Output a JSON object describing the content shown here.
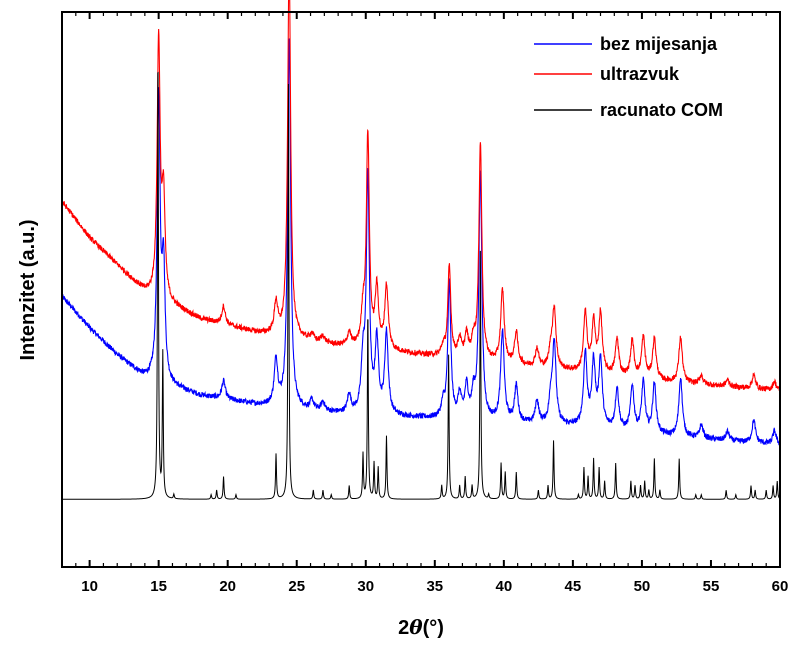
{
  "chart_data": {
    "type": "line",
    "title": "",
    "xlabel": {
      "prefix": "2",
      "symbol": "θ",
      "suffix": "(°)"
    },
    "ylabel": "Intenzitet (a.u.)",
    "xlim": [
      8,
      60
    ],
    "x_ticks": [
      10,
      15,
      20,
      25,
      30,
      35,
      40,
      45,
      50,
      55,
      60
    ],
    "x_tick_labels": [
      "10",
      "15",
      "20",
      "25",
      "30",
      "35",
      "40",
      "45",
      "50",
      "55",
      "60"
    ],
    "ylim": [
      -0.15,
      1.08
    ],
    "y_ticks_shown": false,
    "grid": false,
    "legend_position": "top-right",
    "series": [
      {
        "name": "bez mijesanja",
        "color": "#0000ff",
        "noise": 0.006,
        "baseline": {
          "x": [
            8,
            10,
            12,
            14,
            18,
            22,
            28,
            34,
            40,
            46,
            52,
            56,
            60
          ],
          "y": [
            0.45,
            0.38,
            0.32,
            0.27,
            0.23,
            0.21,
            0.19,
            0.18,
            0.17,
            0.16,
            0.14,
            0.13,
            0.12
          ]
        },
        "peaks": [
          {
            "x": 15.0,
            "h": 0.62,
            "w": 0.13
          },
          {
            "x": 15.35,
            "h": 0.25,
            "w": 0.13
          },
          {
            "x": 19.7,
            "h": 0.04,
            "w": 0.15
          },
          {
            "x": 23.5,
            "h": 0.1,
            "w": 0.15
          },
          {
            "x": 24.45,
            "h": 0.82,
            "w": 0.13
          },
          {
            "x": 26.1,
            "h": 0.02,
            "w": 0.15
          },
          {
            "x": 26.9,
            "h": 0.02,
            "w": 0.15
          },
          {
            "x": 28.8,
            "h": 0.04,
            "w": 0.15
          },
          {
            "x": 29.8,
            "h": 0.11,
            "w": 0.15
          },
          {
            "x": 30.15,
            "h": 0.52,
            "w": 0.13
          },
          {
            "x": 30.8,
            "h": 0.16,
            "w": 0.15
          },
          {
            "x": 31.5,
            "h": 0.18,
            "w": 0.15
          },
          {
            "x": 35.6,
            "h": 0.03,
            "w": 0.15
          },
          {
            "x": 36.05,
            "h": 0.3,
            "w": 0.13
          },
          {
            "x": 36.8,
            "h": 0.05,
            "w": 0.15
          },
          {
            "x": 37.3,
            "h": 0.07,
            "w": 0.15
          },
          {
            "x": 37.8,
            "h": 0.05,
            "w": 0.15
          },
          {
            "x": 38.3,
            "h": 0.55,
            "w": 0.13
          },
          {
            "x": 39.9,
            "h": 0.2,
            "w": 0.15
          },
          {
            "x": 40.9,
            "h": 0.08,
            "w": 0.15
          },
          {
            "x": 42.4,
            "h": 0.05,
            "w": 0.15
          },
          {
            "x": 43.4,
            "h": 0.05,
            "w": 0.15
          },
          {
            "x": 43.65,
            "h": 0.18,
            "w": 0.15
          },
          {
            "x": 45.9,
            "h": 0.16,
            "w": 0.15
          },
          {
            "x": 46.5,
            "h": 0.14,
            "w": 0.15
          },
          {
            "x": 47.0,
            "h": 0.15,
            "w": 0.15
          },
          {
            "x": 48.2,
            "h": 0.09,
            "w": 0.15
          },
          {
            "x": 49.3,
            "h": 0.1,
            "w": 0.15
          },
          {
            "x": 50.1,
            "h": 0.11,
            "w": 0.15
          },
          {
            "x": 50.9,
            "h": 0.11,
            "w": 0.15
          },
          {
            "x": 52.8,
            "h": 0.13,
            "w": 0.15
          },
          {
            "x": 54.3,
            "h": 0.03,
            "w": 0.15
          },
          {
            "x": 56.2,
            "h": 0.02,
            "w": 0.15
          },
          {
            "x": 58.1,
            "h": 0.05,
            "w": 0.15
          },
          {
            "x": 59.6,
            "h": 0.03,
            "w": 0.15
          }
        ]
      },
      {
        "name": "ultrazvuk",
        "color": "#ff0000",
        "noise": 0.006,
        "baseline": {
          "x": [
            8,
            10,
            12,
            14,
            18,
            22,
            28,
            34,
            40,
            46,
            52,
            56,
            60
          ],
          "y": [
            0.66,
            0.58,
            0.52,
            0.46,
            0.4,
            0.37,
            0.34,
            0.32,
            0.3,
            0.28,
            0.26,
            0.25,
            0.24
          ]
        },
        "peaks": [
          {
            "x": 15.0,
            "h": 0.57,
            "w": 0.13
          },
          {
            "x": 15.35,
            "h": 0.22,
            "w": 0.13
          },
          {
            "x": 19.7,
            "h": 0.04,
            "w": 0.15
          },
          {
            "x": 23.5,
            "h": 0.07,
            "w": 0.15
          },
          {
            "x": 24.45,
            "h": 0.83,
            "w": 0.13
          },
          {
            "x": 26.1,
            "h": 0.015,
            "w": 0.15
          },
          {
            "x": 26.9,
            "h": 0.015,
            "w": 0.15
          },
          {
            "x": 28.8,
            "h": 0.03,
            "w": 0.15
          },
          {
            "x": 29.8,
            "h": 0.07,
            "w": 0.15
          },
          {
            "x": 30.15,
            "h": 0.47,
            "w": 0.13
          },
          {
            "x": 30.8,
            "h": 0.13,
            "w": 0.15
          },
          {
            "x": 31.5,
            "h": 0.14,
            "w": 0.15
          },
          {
            "x": 35.6,
            "h": 0.02,
            "w": 0.15
          },
          {
            "x": 36.05,
            "h": 0.2,
            "w": 0.13
          },
          {
            "x": 36.8,
            "h": 0.04,
            "w": 0.15
          },
          {
            "x": 37.3,
            "h": 0.05,
            "w": 0.15
          },
          {
            "x": 37.8,
            "h": 0.04,
            "w": 0.15
          },
          {
            "x": 38.3,
            "h": 0.48,
            "w": 0.13
          },
          {
            "x": 39.9,
            "h": 0.16,
            "w": 0.15
          },
          {
            "x": 40.9,
            "h": 0.07,
            "w": 0.15
          },
          {
            "x": 42.4,
            "h": 0.04,
            "w": 0.15
          },
          {
            "x": 43.4,
            "h": 0.04,
            "w": 0.15
          },
          {
            "x": 43.65,
            "h": 0.13,
            "w": 0.15
          },
          {
            "x": 45.9,
            "h": 0.13,
            "w": 0.15
          },
          {
            "x": 46.5,
            "h": 0.11,
            "w": 0.15
          },
          {
            "x": 47.0,
            "h": 0.13,
            "w": 0.15
          },
          {
            "x": 48.2,
            "h": 0.08,
            "w": 0.15
          },
          {
            "x": 49.3,
            "h": 0.08,
            "w": 0.15
          },
          {
            "x": 50.1,
            "h": 0.09,
            "w": 0.15
          },
          {
            "x": 50.9,
            "h": 0.09,
            "w": 0.15
          },
          {
            "x": 52.8,
            "h": 0.1,
            "w": 0.15
          },
          {
            "x": 54.3,
            "h": 0.02,
            "w": 0.15
          },
          {
            "x": 56.2,
            "h": 0.015,
            "w": 0.15
          },
          {
            "x": 58.1,
            "h": 0.03,
            "w": 0.15
          },
          {
            "x": 59.6,
            "h": 0.02,
            "w": 0.15
          }
        ]
      },
      {
        "name": "racunato COM",
        "color": "#000000",
        "noise": 0,
        "baseline": {
          "x": [
            8,
            60
          ],
          "y": [
            0.0,
            0.0
          ]
        },
        "peaks": [
          {
            "x": 14.95,
            "h": 1.0,
            "w": 0.04
          },
          {
            "x": 15.3,
            "h": 0.32,
            "w": 0.04
          },
          {
            "x": 16.1,
            "h": 0.01,
            "w": 0.04
          },
          {
            "x": 18.8,
            "h": 0.01,
            "w": 0.04
          },
          {
            "x": 19.2,
            "h": 0.02,
            "w": 0.04
          },
          {
            "x": 19.7,
            "h": 0.05,
            "w": 0.04
          },
          {
            "x": 20.6,
            "h": 0.01,
            "w": 0.04
          },
          {
            "x": 23.5,
            "h": 0.1,
            "w": 0.04
          },
          {
            "x": 24.4,
            "h": 0.92,
            "w": 0.04
          },
          {
            "x": 26.2,
            "h": 0.02,
            "w": 0.04
          },
          {
            "x": 26.9,
            "h": 0.02,
            "w": 0.04
          },
          {
            "x": 27.5,
            "h": 0.01,
            "w": 0.04
          },
          {
            "x": 28.8,
            "h": 0.03,
            "w": 0.04
          },
          {
            "x": 29.8,
            "h": 0.1,
            "w": 0.04
          },
          {
            "x": 30.15,
            "h": 0.42,
            "w": 0.04
          },
          {
            "x": 30.6,
            "h": 0.08,
            "w": 0.04
          },
          {
            "x": 30.9,
            "h": 0.07,
            "w": 0.04
          },
          {
            "x": 31.5,
            "h": 0.14,
            "w": 0.04
          },
          {
            "x": 35.5,
            "h": 0.03,
            "w": 0.04
          },
          {
            "x": 36.0,
            "h": 0.32,
            "w": 0.04
          },
          {
            "x": 36.8,
            "h": 0.03,
            "w": 0.04
          },
          {
            "x": 37.2,
            "h": 0.05,
            "w": 0.04
          },
          {
            "x": 37.7,
            "h": 0.03,
            "w": 0.04
          },
          {
            "x": 38.3,
            "h": 0.55,
            "w": 0.04
          },
          {
            "x": 38.9,
            "h": 0.01,
            "w": 0.04
          },
          {
            "x": 39.8,
            "h": 0.08,
            "w": 0.04
          },
          {
            "x": 40.1,
            "h": 0.06,
            "w": 0.04
          },
          {
            "x": 40.9,
            "h": 0.06,
            "w": 0.04
          },
          {
            "x": 42.5,
            "h": 0.02,
            "w": 0.04
          },
          {
            "x": 43.2,
            "h": 0.03,
            "w": 0.04
          },
          {
            "x": 43.6,
            "h": 0.13,
            "w": 0.04
          },
          {
            "x": 45.4,
            "h": 0.01,
            "w": 0.04
          },
          {
            "x": 45.8,
            "h": 0.07,
            "w": 0.04
          },
          {
            "x": 46.1,
            "h": 0.05,
            "w": 0.04
          },
          {
            "x": 46.5,
            "h": 0.09,
            "w": 0.04
          },
          {
            "x": 46.9,
            "h": 0.07,
            "w": 0.04
          },
          {
            "x": 47.3,
            "h": 0.04,
            "w": 0.04
          },
          {
            "x": 48.1,
            "h": 0.08,
            "w": 0.04
          },
          {
            "x": 49.2,
            "h": 0.04,
            "w": 0.04
          },
          {
            "x": 49.5,
            "h": 0.03,
            "w": 0.04
          },
          {
            "x": 49.9,
            "h": 0.03,
            "w": 0.04
          },
          {
            "x": 50.2,
            "h": 0.04,
            "w": 0.04
          },
          {
            "x": 50.5,
            "h": 0.02,
            "w": 0.04
          },
          {
            "x": 50.9,
            "h": 0.09,
            "w": 0.04
          },
          {
            "x": 51.3,
            "h": 0.02,
            "w": 0.04
          },
          {
            "x": 52.7,
            "h": 0.09,
            "w": 0.04
          },
          {
            "x": 53.9,
            "h": 0.01,
            "w": 0.04
          },
          {
            "x": 54.3,
            "h": 0.01,
            "w": 0.04
          },
          {
            "x": 56.1,
            "h": 0.02,
            "w": 0.04
          },
          {
            "x": 56.8,
            "h": 0.01,
            "w": 0.04
          },
          {
            "x": 57.9,
            "h": 0.03,
            "w": 0.04
          },
          {
            "x": 58.2,
            "h": 0.02,
            "w": 0.04
          },
          {
            "x": 59.0,
            "h": 0.02,
            "w": 0.04
          },
          {
            "x": 59.5,
            "h": 0.03,
            "w": 0.04
          },
          {
            "x": 59.8,
            "h": 0.04,
            "w": 0.04
          }
        ]
      }
    ]
  }
}
